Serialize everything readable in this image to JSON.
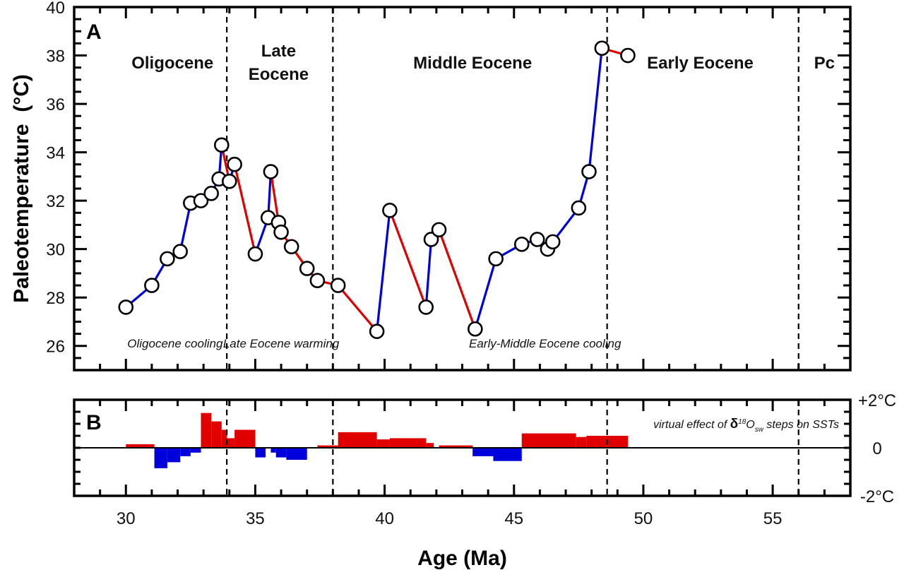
{
  "chart_data": [
    {
      "panel": "A",
      "type": "line",
      "xlabel": "Age (Ma)",
      "ylabel": "Paleotemperature  (°C)",
      "xlim": [
        28,
        58
      ],
      "ylim": [
        25,
        40
      ],
      "xticks": [
        30,
        35,
        40,
        45,
        50,
        55
      ],
      "xtick_labels": [
        "30",
        "35",
        "40",
        "45",
        "50",
        "55"
      ],
      "yticks": [
        26,
        28,
        30,
        32,
        34,
        36,
        38,
        40
      ],
      "ytick_labels": [
        "26",
        "28",
        "30",
        "32",
        "34",
        "36",
        "38",
        "40"
      ],
      "grid": false,
      "segment_color_rule": "blue where temperature decreases toward younger ages (cooling), red where it increases (warming)",
      "colors": {
        "cooling": "#0000dd",
        "warming": "#e00000",
        "marker_fill": "#ffffff",
        "marker_edge": "#000000"
      },
      "series": [
        {
          "name": "Paleotemperature",
          "x": [
            30.0,
            31.0,
            31.6,
            32.1,
            32.5,
            32.9,
            33.3,
            33.6,
            33.7,
            34.0,
            34.2,
            35.0,
            35.5,
            35.6,
            35.9,
            36.0,
            36.4,
            37.0,
            37.4,
            38.2,
            39.7,
            40.2,
            41.6,
            41.8,
            42.1,
            43.5,
            44.3,
            45.3,
            45.9,
            46.3,
            46.5,
            47.5,
            47.9,
            48.4,
            49.4
          ],
          "y": [
            27.6,
            28.5,
            29.6,
            29.9,
            31.9,
            32.0,
            32.3,
            32.9,
            34.3,
            32.8,
            33.5,
            29.8,
            31.3,
            33.2,
            31.1,
            30.7,
            30.1,
            29.2,
            28.7,
            28.5,
            26.6,
            31.6,
            27.6,
            30.4,
            30.8,
            26.7,
            29.6,
            30.2,
            30.4,
            30.0,
            30.3,
            31.7,
            33.2,
            38.3,
            38.0
          ]
        }
      ],
      "boundaries": [
        {
          "age": 33.9,
          "style": "dashed"
        },
        {
          "age": 38.0,
          "style": "dashed"
        },
        {
          "age": 48.6,
          "style": "dashed"
        },
        {
          "age": 56.0,
          "style": "dashed"
        }
      ],
      "epoch_labels": [
        {
          "lines": [
            "Oligocene"
          ],
          "age": 31.8
        },
        {
          "lines": [
            "Late",
            "Eocene"
          ],
          "age": 35.9
        },
        {
          "lines": [
            "Middle Eocene"
          ],
          "age": 43.4
        },
        {
          "lines": [
            "Early Eocene"
          ],
          "age": 52.2
        },
        {
          "lines": [
            "Pc"
          ],
          "age": 57.0
        }
      ],
      "annotations": [
        {
          "text": "Oligocene cooling",
          "age": 31.9
        },
        {
          "text": "Late Eocene warming",
          "age": 36.0
        },
        {
          "text": "Early-Middle Eocene cooling",
          "age": 46.2
        }
      ]
    },
    {
      "panel": "B",
      "type": "bar",
      "xlabel": "Age (Ma)",
      "xlim": [
        28,
        58
      ],
      "ylim": [
        -2,
        2
      ],
      "ytick_labels_right": [
        "+2°C",
        "0",
        "-2°C"
      ],
      "yticks_right": [
        2,
        0,
        -2
      ],
      "annotation": {
        "prefix": "virtual effect of ",
        "delta": "δ",
        "sup": "18",
        "o": "O",
        "sub": "sw",
        "suffix": " steps on SSTs"
      },
      "colors": {
        "positive": "#e00000",
        "negative": "#0000dd"
      },
      "bars": [
        {
          "start": 30.0,
          "end": 31.1,
          "value": 0.15
        },
        {
          "start": 31.1,
          "end": 31.6,
          "value": -0.85
        },
        {
          "start": 31.6,
          "end": 32.1,
          "value": -0.6
        },
        {
          "start": 32.1,
          "end": 32.5,
          "value": -0.35
        },
        {
          "start": 32.5,
          "end": 32.9,
          "value": -0.2
        },
        {
          "start": 32.9,
          "end": 33.3,
          "value": 1.45
        },
        {
          "start": 33.3,
          "end": 33.7,
          "value": 1.1
        },
        {
          "start": 33.7,
          "end": 33.9,
          "value": 0.75
        },
        {
          "start": 33.9,
          "end": 34.2,
          "value": 0.4
        },
        {
          "start": 34.2,
          "end": 35.0,
          "value": 0.75
        },
        {
          "start": 35.0,
          "end": 35.4,
          "value": -0.4
        },
        {
          "start": 35.6,
          "end": 35.8,
          "value": -0.2
        },
        {
          "start": 35.8,
          "end": 36.2,
          "value": -0.4
        },
        {
          "start": 36.2,
          "end": 37.0,
          "value": -0.5
        },
        {
          "start": 37.4,
          "end": 38.2,
          "value": 0.1
        },
        {
          "start": 38.2,
          "end": 39.7,
          "value": 0.65
        },
        {
          "start": 39.7,
          "end": 40.2,
          "value": 0.35
        },
        {
          "start": 40.2,
          "end": 41.6,
          "value": 0.4
        },
        {
          "start": 41.6,
          "end": 41.9,
          "value": 0.2
        },
        {
          "start": 42.1,
          "end": 43.4,
          "value": 0.1
        },
        {
          "start": 43.4,
          "end": 44.2,
          "value": -0.35
        },
        {
          "start": 44.2,
          "end": 45.3,
          "value": -0.55
        },
        {
          "start": 45.3,
          "end": 47.4,
          "value": 0.6
        },
        {
          "start": 47.4,
          "end": 47.8,
          "value": 0.45
        },
        {
          "start": 47.8,
          "end": 49.4,
          "value": 0.5
        }
      ]
    }
  ]
}
